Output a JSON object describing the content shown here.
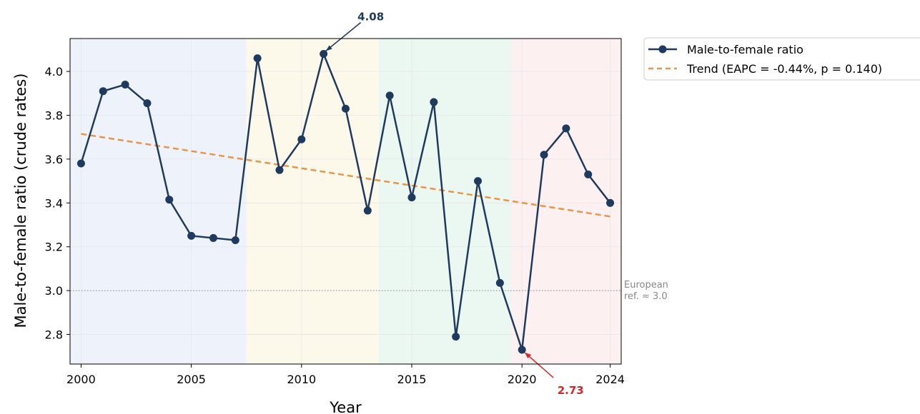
{
  "chart_data": {
    "type": "line",
    "xlabel": "Year",
    "ylabel": "Male-to-female ratio (crude rates)",
    "xlim": [
      1999.5,
      2024.5
    ],
    "ylim": [
      2.665,
      4.15
    ],
    "xticks": [
      2000,
      2005,
      2010,
      2015,
      2020,
      2024
    ],
    "yticks": [
      2.8,
      3.0,
      3.2,
      3.4,
      3.6,
      3.8,
      4.0
    ],
    "xtick_labels": [
      "2000",
      "2005",
      "2010",
      "2015",
      "2020",
      "2024"
    ],
    "ytick_labels": [
      "2.8",
      "3.0",
      "3.2",
      "3.4",
      "3.6",
      "3.8",
      "4.0"
    ],
    "grid": true,
    "legend_placement": "outside-top-right",
    "periods": [
      {
        "from": 1999.5,
        "to": 2007.5,
        "color": "#eef3fb"
      },
      {
        "from": 2007.5,
        "to": 2013.5,
        "color": "#fdf9ea"
      },
      {
        "from": 2013.5,
        "to": 2019.5,
        "color": "#eaf8f1"
      },
      {
        "from": 2019.5,
        "to": 2024.5,
        "color": "#fcf0f1"
      }
    ],
    "series": [
      {
        "name": "Male-to-female ratio",
        "color": "#1f3a5f",
        "x": [
          2000,
          2001,
          2002,
          2003,
          2004,
          2005,
          2006,
          2007,
          2008,
          2009,
          2010,
          2011,
          2012,
          2013,
          2014,
          2015,
          2016,
          2017,
          2018,
          2019,
          2020,
          2021,
          2022,
          2023,
          2024
        ],
        "y": [
          3.58,
          3.91,
          3.94,
          3.855,
          3.415,
          3.25,
          3.24,
          3.23,
          4.06,
          3.55,
          3.69,
          4.08,
          3.83,
          3.365,
          3.89,
          3.425,
          3.86,
          2.79,
          3.5,
          3.035,
          2.73,
          3.62,
          3.74,
          3.53,
          3.4
        ]
      },
      {
        "name": "Trend (EAPC = -0.44%, p = 0.140)",
        "color": "#e8954a",
        "style": "dashed",
        "x": [
          2000,
          2024
        ],
        "y": [
          3.715,
          3.338
        ]
      }
    ],
    "reference_line": {
      "y": 3.0,
      "label_line1": "European",
      "label_line2": "ref. ≈ 3.0",
      "color": "#888888"
    },
    "annotations": [
      {
        "text": "4.08",
        "x": 2011,
        "y": 4.08,
        "color": "#1f3a5f"
      },
      {
        "text": "2.73",
        "x": 2020,
        "y": 2.73,
        "color": "#d62728"
      }
    ]
  }
}
